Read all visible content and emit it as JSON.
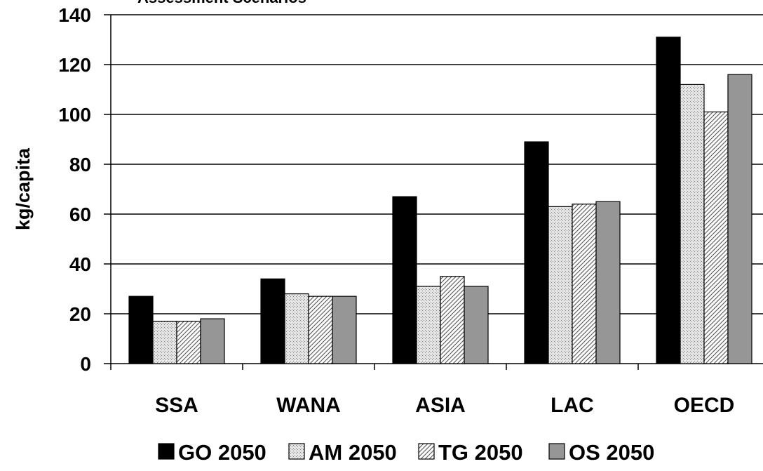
{
  "chart_data": {
    "type": "bar",
    "title": "Assessment Scenarios",
    "ylabel": "kg/capita",
    "xlabel": "",
    "ylim": [
      0,
      140
    ],
    "yticks": [
      0,
      20,
      40,
      60,
      80,
      100,
      120,
      140
    ],
    "grid": "horizontal",
    "legend_position": "bottom",
    "categories": [
      "SSA",
      "WANA",
      "ASIA",
      "LAC",
      "OECD"
    ],
    "series": [
      {
        "name": "GO 2050",
        "values": [
          27,
          34,
          67,
          89,
          131
        ],
        "color": "#000000",
        "pattern": "solid"
      },
      {
        "name": "AM 2050",
        "values": [
          17,
          28,
          31,
          63,
          112
        ],
        "color": "#cfcfcf",
        "pattern": "dots"
      },
      {
        "name": "TG 2050",
        "values": [
          17,
          27,
          35,
          64,
          101
        ],
        "color": "#ffffff",
        "pattern": "diagonal"
      },
      {
        "name": "OS 2050",
        "values": [
          18,
          27,
          31,
          65,
          116
        ],
        "color": "#969696",
        "pattern": "solid"
      }
    ]
  }
}
